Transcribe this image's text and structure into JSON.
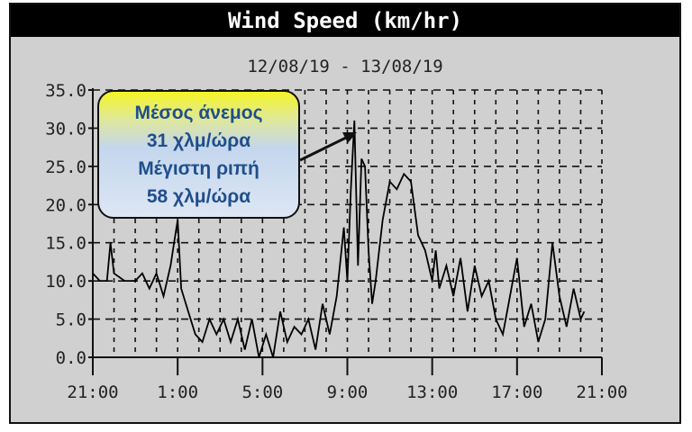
{
  "chart_data": {
    "type": "line",
    "title": "Wind Speed (km/hr)",
    "subtitle": "12/08/19 - 13/08/19",
    "xlabel": "",
    "ylabel": "",
    "ylim": [
      0,
      35
    ],
    "yticks": [
      "0.0",
      "5.0",
      "10.0",
      "15.0",
      "20.0",
      "25.0",
      "30.0",
      "35.0"
    ],
    "xlim": [
      "21:00",
      "21:00"
    ],
    "xticks": [
      "21:00",
      "1:00",
      "5:00",
      "9:00",
      "13:00",
      "17:00",
      "21:00"
    ],
    "grid": true,
    "line_color": "#000000",
    "series": [
      {
        "x": [
          "21:00",
          "21:20",
          "21:40",
          "21:50",
          "22:00",
          "22:30",
          "23:00",
          "23:20",
          "23:40",
          "0:00",
          "0:20",
          "0:40",
          "0:50",
          "1:00",
          "1:10",
          "1:30",
          "1:50",
          "2:10",
          "2:30",
          "2:50",
          "3:10",
          "3:30",
          "3:50",
          "4:10",
          "4:30",
          "4:50",
          "5:10",
          "5:30",
          "5:50",
          "6:10",
          "6:30",
          "6:50",
          "7:10",
          "7:30",
          "7:50",
          "8:10",
          "8:30",
          "8:50",
          "9:00",
          "9:10",
          "9:20",
          "9:30",
          "9:40",
          "9:50",
          "10:00",
          "10:10",
          "10:20",
          "10:40",
          "11:00",
          "11:20",
          "11:40",
          "12:00",
          "12:20",
          "12:40",
          "13:00",
          "13:10",
          "13:20",
          "13:40",
          "14:00",
          "14:20",
          "14:40",
          "15:00",
          "15:20",
          "15:40",
          "16:00",
          "16:20",
          "16:40",
          "17:00",
          "17:20",
          "17:40",
          "18:00",
          "18:20",
          "18:40",
          "19:00",
          "19:20",
          "19:40",
          "20:00",
          "20:10"
        ],
        "y": [
          11,
          10,
          10,
          15,
          11,
          10,
          10,
          11,
          9,
          11,
          8,
          12,
          15,
          18,
          9,
          6,
          3,
          2,
          5,
          3,
          5,
          2,
          5,
          1,
          5,
          0,
          3,
          0,
          6,
          2,
          4,
          3,
          5,
          1,
          7,
          3,
          8,
          17,
          10,
          22,
          31,
          12,
          26,
          25,
          14,
          7,
          10,
          18,
          23,
          22,
          24,
          23,
          16,
          14,
          10,
          14,
          9,
          12,
          8,
          13,
          6,
          12,
          8,
          10,
          5,
          3,
          8,
          13,
          4,
          7,
          2,
          5,
          15,
          8,
          4,
          9,
          5,
          6
        ]
      }
    ]
  },
  "callout": {
    "line1": "Μέσος άνεμος",
    "line2": "31 χλμ/ώρα",
    "line3": "Μέγιστη ριπή",
    "line4": "58 χλμ/ώρα",
    "gradient_top": "#f5f526",
    "gradient_bottom": "#dde6f4",
    "text_color": "#1f4e8c"
  }
}
